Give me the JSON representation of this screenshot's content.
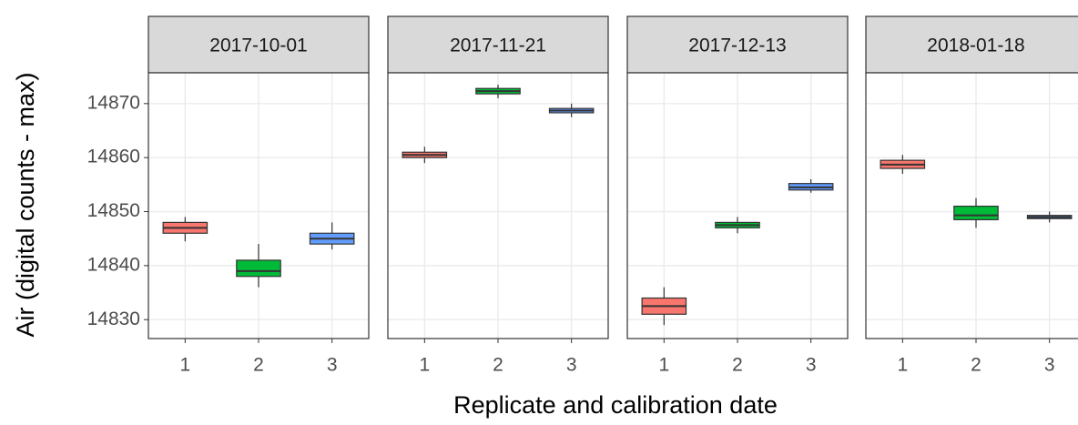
{
  "shared": {
    "ylabel": "Air (digital counts - max)",
    "xlabel": "Replicate and calibration date",
    "ylim": [
      14826.5,
      14875.7
    ],
    "yticks": [
      14830,
      14840,
      14850,
      14860,
      14870
    ],
    "colors": [
      "#F8766D",
      "#00BA38",
      "#619CFF"
    ],
    "grid": true
  },
  "chart_data": [
    {
      "type": "box",
      "title": "2017-10-01",
      "categories": [
        "1",
        "2",
        "3"
      ],
      "whislo": [
        14844.5,
        14836,
        14843
      ],
      "q1": [
        14846,
        14838,
        14844
      ],
      "median": [
        14847,
        14839,
        14845
      ],
      "q3": [
        14848,
        14841,
        14846
      ],
      "whishi": [
        14849,
        14844,
        14848
      ]
    },
    {
      "type": "box",
      "title": "2017-11-21",
      "categories": [
        "1",
        "2",
        "3"
      ],
      "whislo": [
        14859,
        14871,
        14867.5
      ],
      "q1": [
        14860,
        14871.8,
        14868.3
      ],
      "median": [
        14860.5,
        14872.3,
        14868.7
      ],
      "q3": [
        14861,
        14872.8,
        14869.1
      ],
      "whishi": [
        14862,
        14873.5,
        14870
      ]
    },
    {
      "type": "box",
      "title": "2017-12-13",
      "categories": [
        "1",
        "2",
        "3"
      ],
      "whislo": [
        14829,
        14846,
        14853.5
      ],
      "q1": [
        14831,
        14847,
        14854
      ],
      "median": [
        14832.5,
        14847.5,
        14854.5
      ],
      "q3": [
        14834,
        14848,
        14855.2
      ],
      "whishi": [
        14836,
        14849,
        14856
      ]
    },
    {
      "type": "box",
      "title": "2018-01-18",
      "categories": [
        "1",
        "2",
        "3"
      ],
      "whislo": [
        14857,
        14847,
        14848
      ],
      "q1": [
        14858,
        14848.5,
        14848.7
      ],
      "median": [
        14858.7,
        14849.3,
        14849
      ],
      "q3": [
        14859.5,
        14851,
        14849.3
      ],
      "whishi": [
        14860.5,
        14852.5,
        14850
      ]
    }
  ]
}
